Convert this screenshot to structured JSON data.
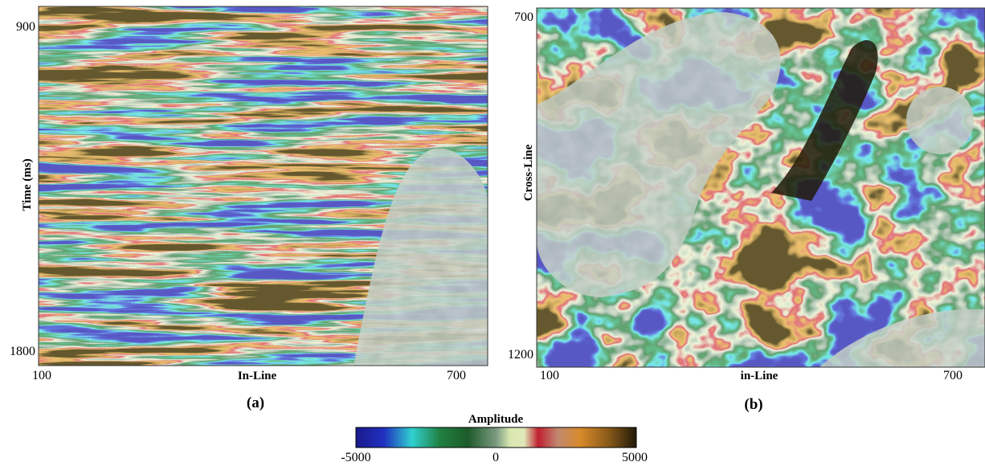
{
  "panels": [
    {
      "ylabel": "Time (ms)",
      "yticks": [
        "900",
        "1800"
      ],
      "xlabel": "In-Line",
      "xticks": [
        "100",
        "700"
      ],
      "caption": "(a)"
    },
    {
      "ylabel": "Cross-Line",
      "yticks": [
        "700",
        "1200"
      ],
      "xlabel": "in-Line",
      "xticks": [
        "100",
        "700"
      ],
      "caption": "(b)"
    }
  ],
  "colorbar": {
    "title": "Amplitude",
    "ticks": [
      "-5000",
      "0",
      "5000"
    ]
  }
}
